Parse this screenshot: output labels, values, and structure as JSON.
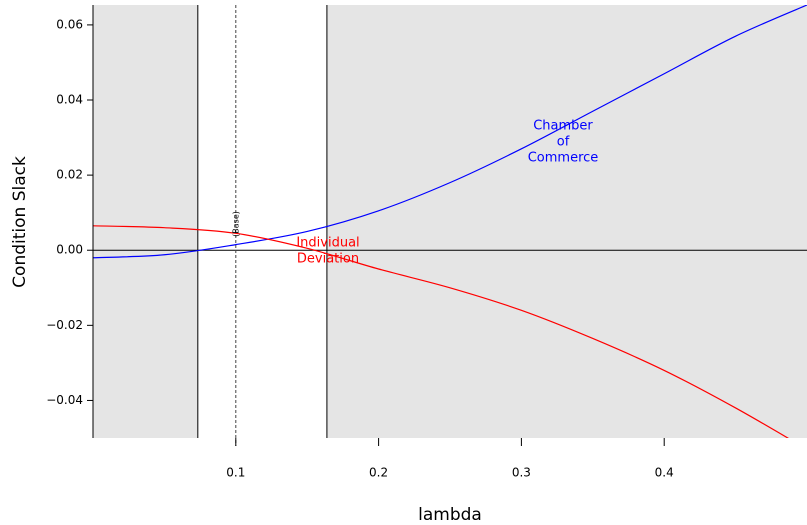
{
  "chart_data": {
    "type": "line",
    "x_label": "lambda",
    "y_label": "Condition Slack",
    "x": [
      0,
      0.05,
      0.1,
      0.15,
      0.2,
      0.25,
      0.3,
      0.35,
      0.4,
      0.45,
      0.5
    ],
    "series": [
      {
        "name": [
          "Chamber",
          "of",
          "Commerce"
        ],
        "color": "#0000ff",
        "values": [
          -0.002,
          -0.0012,
          0.0015,
          0.005,
          0.0105,
          0.018,
          0.027,
          0.037,
          0.047,
          0.057,
          0.0653
        ]
      },
      {
        "name": [
          "Individual",
          "Deviation"
        ],
        "color": "#ff0000",
        "values": [
          0.0065,
          0.006,
          0.0045,
          0.0005,
          -0.005,
          -0.01,
          -0.016,
          -0.0235,
          -0.032,
          -0.042,
          -0.053
        ]
      }
    ],
    "xlim": [
      0,
      0.5
    ],
    "ylim": [
      -0.05,
      0.0653
    ],
    "xticks": [
      0.1,
      0.2,
      0.3,
      0.4
    ],
    "yticks": [
      {
        "value": -0.04,
        "label": "−0.04"
      },
      {
        "value": -0.02,
        "label": "−0.02"
      },
      {
        "value": 0,
        "label": "0.00"
      },
      0.02,
      0.04,
      0.06
    ],
    "shaded_regions": [
      [
        0,
        0.0734
      ],
      [
        0.1638,
        0.5
      ]
    ],
    "shade_color": "#e5e5e5",
    "boundary_lines": [
      0.0734,
      0.1638
    ],
    "reference_line": {
      "value": 0.1,
      "label": "(Base)"
    },
    "zero_line": 0
  }
}
